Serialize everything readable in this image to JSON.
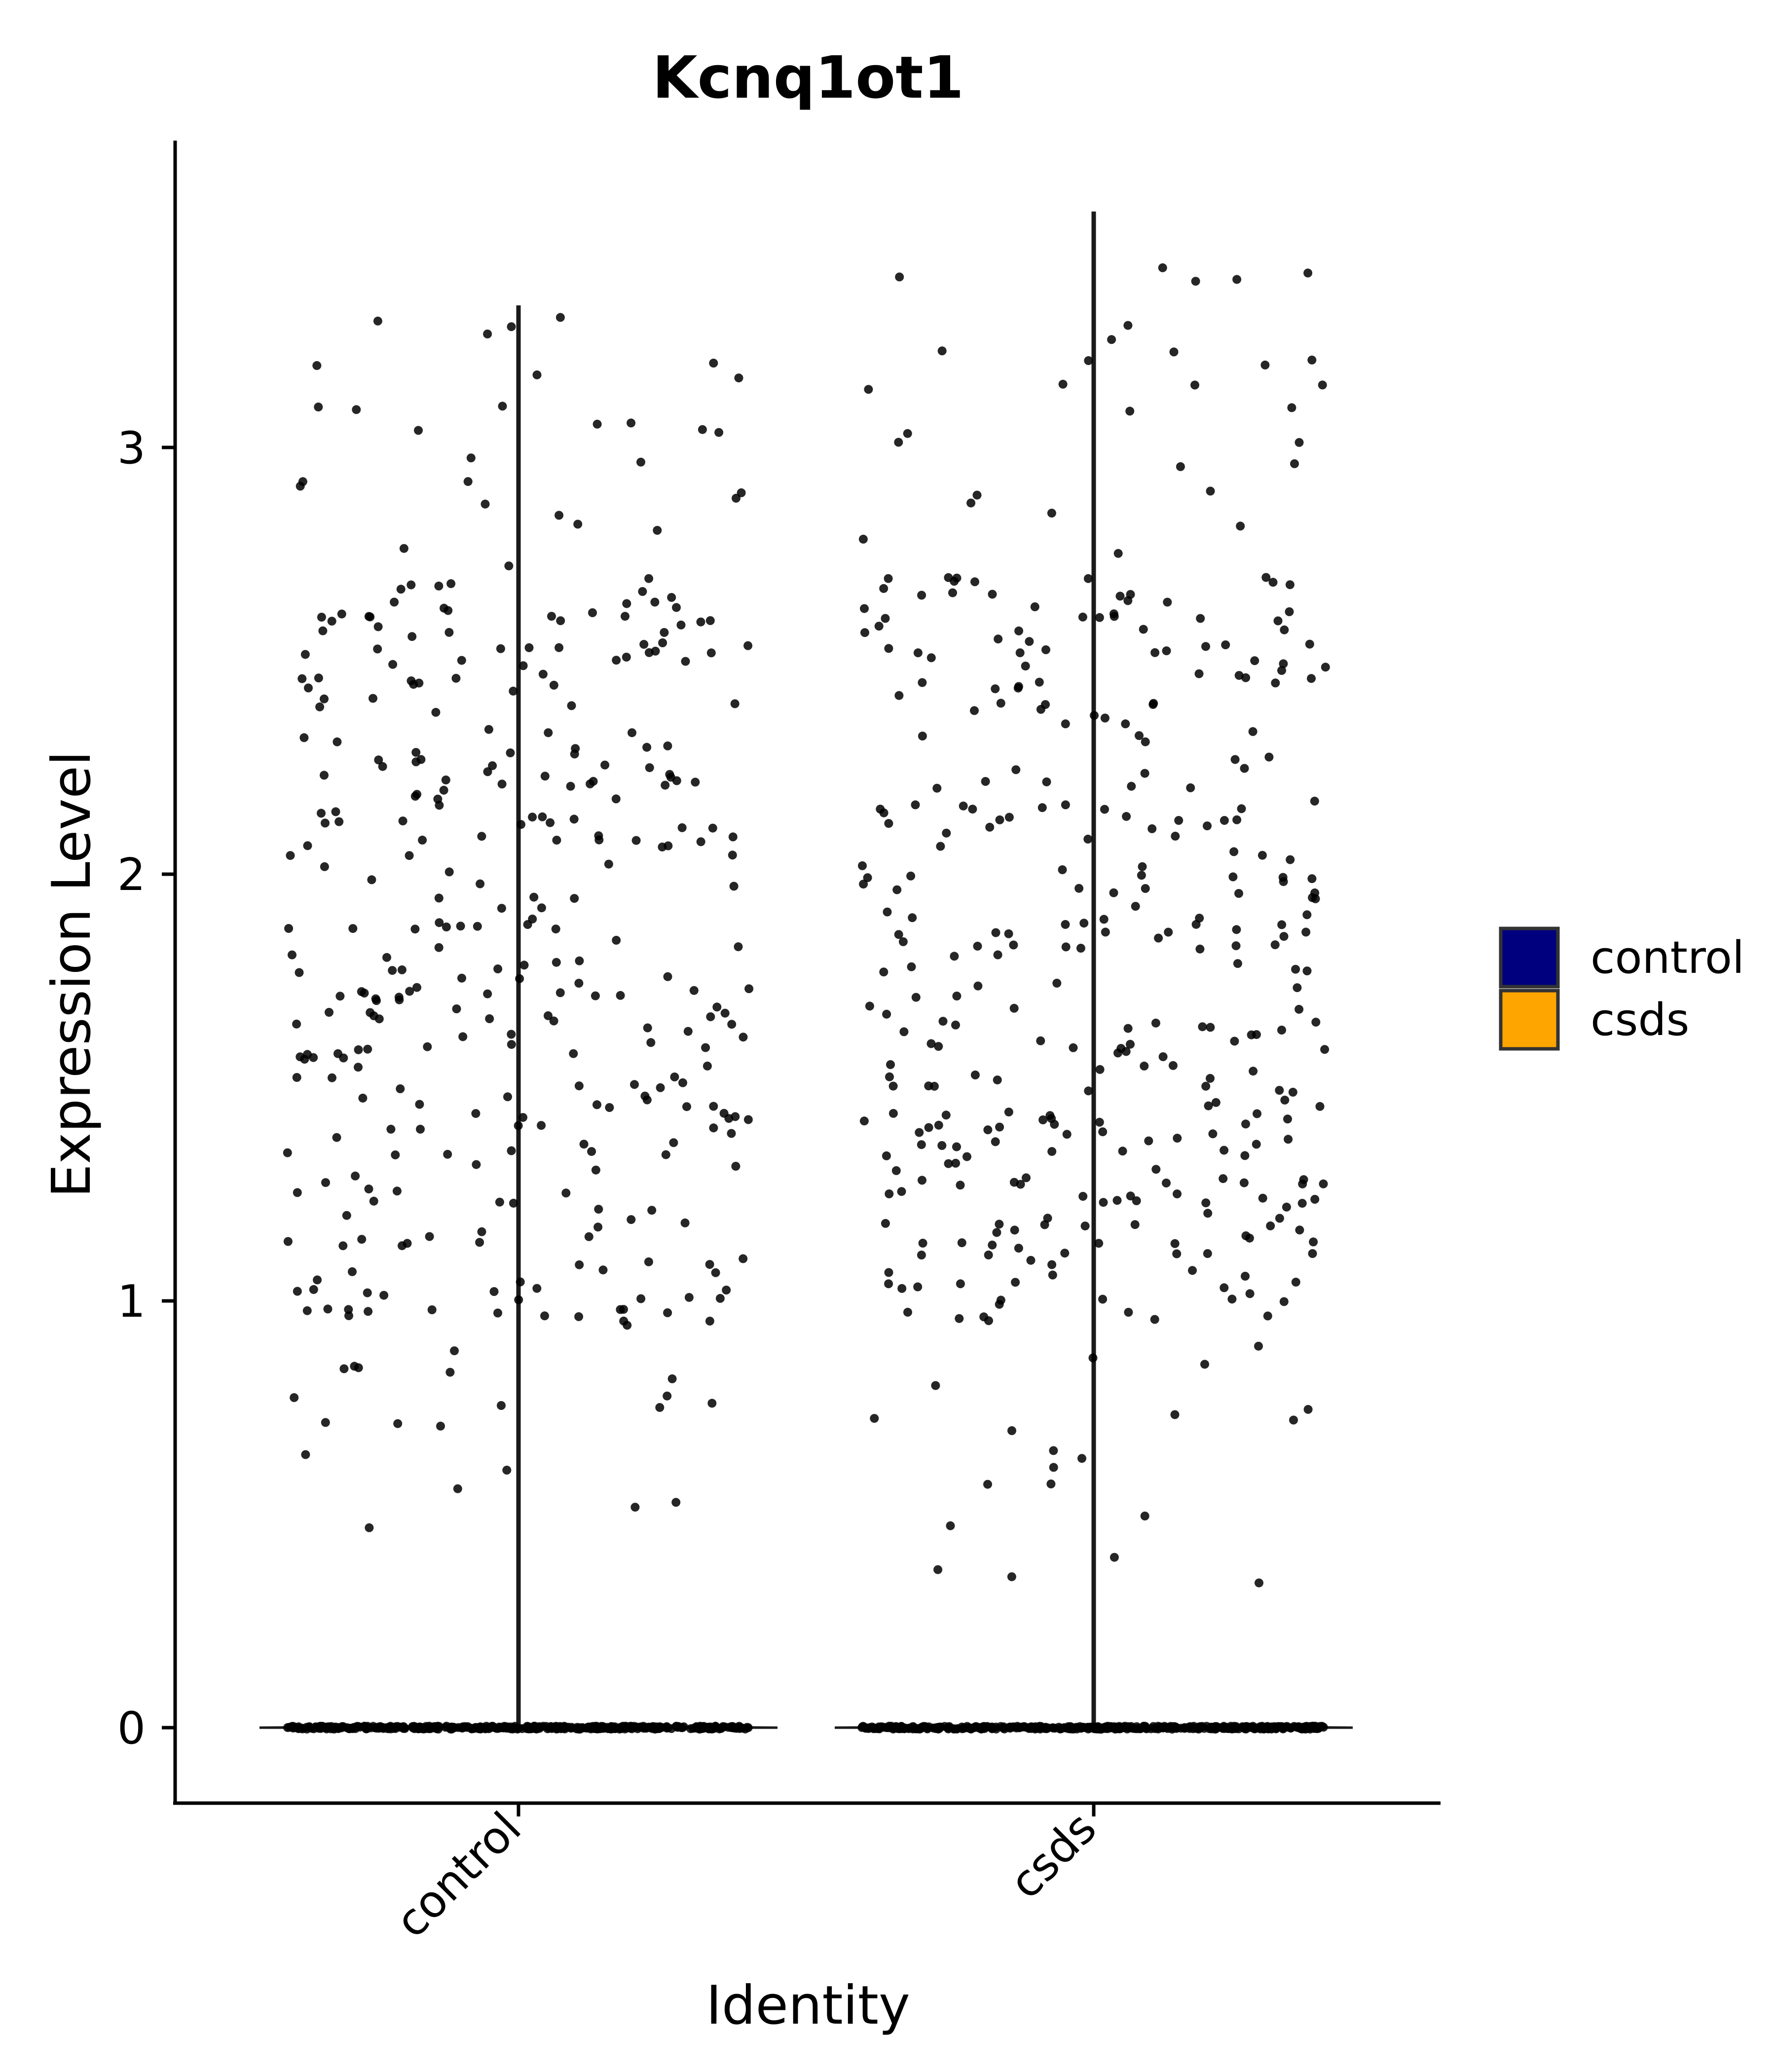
{
  "chart_data": {
    "type": "violin",
    "title": "Kcnq1ot1",
    "xlabel": "Identity",
    "ylabel": "Expression Level",
    "categories": [
      "control",
      "csds"
    ],
    "ylim": [
      -0.18,
      3.7
    ],
    "yticks": [
      0,
      1,
      2,
      3
    ],
    "grid": false,
    "legend": {
      "placement": "right",
      "items": [
        {
          "label": "control",
          "color": "#00007f"
        },
        {
          "label": "csds",
          "color": "#ffa500"
        }
      ]
    },
    "colors": {
      "point": "#000000",
      "axis": "#000000",
      "violin_outline": "#1a1a1a"
    },
    "series": [
      {
        "name": "control",
        "max": 3.33,
        "zero_count": 420,
        "nonzero_count": 360,
        "min_nonzero": 0.46
      },
      {
        "name": "csds",
        "max": 3.55,
        "zero_count": 420,
        "nonzero_count": 380,
        "min_nonzero": 0.29
      }
    ]
  }
}
